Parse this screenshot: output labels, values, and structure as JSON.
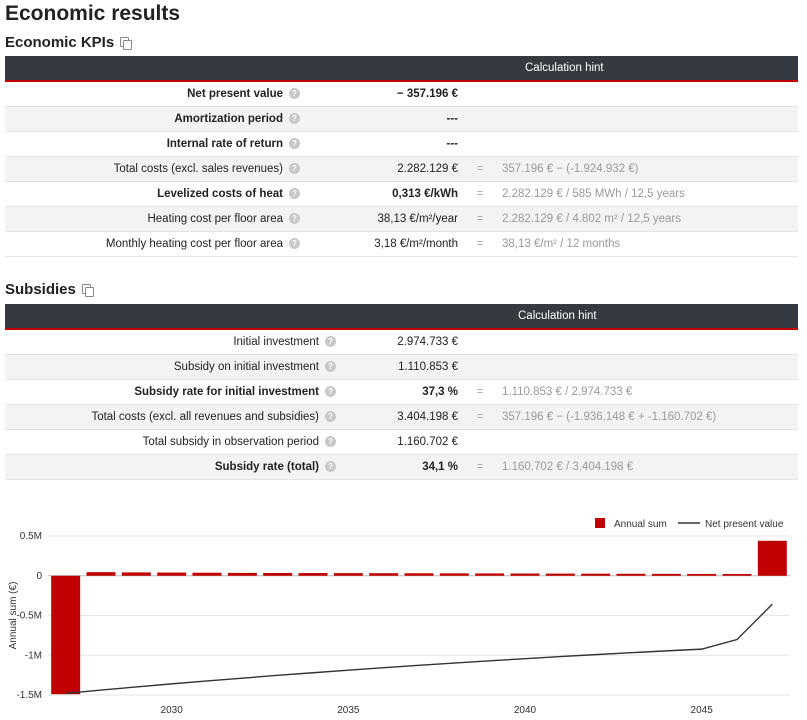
{
  "page": {
    "title": "Economic results"
  },
  "kpis": {
    "title": "Economic KPIs",
    "header_hint": "Calculation hint",
    "rows": [
      {
        "label": "Net present value",
        "value": "− 357.196 €",
        "hint": "",
        "bold": true
      },
      {
        "label": "Amortization period",
        "value": "---",
        "hint": "",
        "bold": true
      },
      {
        "label": "Internal rate of return",
        "value": "---",
        "hint": "",
        "bold": true
      },
      {
        "label": "Total costs (excl. sales revenues)",
        "value": "2.282.129 €",
        "hint": "357.196 € − (-1.924.932 €)",
        "bold": false
      },
      {
        "label": "Levelized costs of heat",
        "value": "0,313 €/kWh",
        "hint": "2.282.129 € / 585 MWh / 12,5 years",
        "bold": true
      },
      {
        "label": "Heating cost per floor area",
        "value": "38,13 €/m²/year",
        "hint": "2.282.129 € / 4.802 m² / 12,5 years",
        "bold": false
      },
      {
        "label": "Monthly heating cost per floor area",
        "value": "3,18 €/m²/month",
        "hint": "38,13 €/m² / 12 months",
        "bold": false
      }
    ]
  },
  "subsidies": {
    "title": "Subsidies",
    "header_hint": "Calculation hint",
    "rows": [
      {
        "label": "Initial investment",
        "value": "2.974.733 €",
        "hint": "",
        "bold": false
      },
      {
        "label": "Subsidy on initial investment",
        "value": "1.110.853 €",
        "hint": "",
        "bold": false
      },
      {
        "label": "Subsidy rate for initial investment",
        "value": "37,3 %",
        "hint": "1.110.853 € / 2.974.733 €",
        "bold": true
      },
      {
        "label": "Total costs (excl. all revenues and subsidies)",
        "value": "3.404.198 €",
        "hint": "357.196 € − (-1.936.148 € + -1.160.702 €)",
        "bold": false
      },
      {
        "label": "Total subsidy in observation period",
        "value": "1.160.702 €",
        "hint": "",
        "bold": false
      },
      {
        "label": "Subsidy rate (total)",
        "value": "34,1 %",
        "hint": "1.160.702 € / 3.404.198 €",
        "bold": true
      }
    ]
  },
  "icons": {
    "copy": "copy-icon",
    "help": "question-circle-icon"
  },
  "colors": {
    "bar": "#c00000",
    "line": "#333333",
    "header": "#343a40",
    "accent": "#c00000"
  },
  "chart_data": {
    "type": "bar",
    "ylabel": "Annual sum (€)",
    "xlabel": "",
    "ylim": [
      -1500000,
      500000
    ],
    "yticks": [
      500000,
      0,
      -500000,
      -1000000,
      -1500000
    ],
    "ytick_labels": [
      "0.5M",
      "0",
      "-0.5M",
      "-1M",
      "-1.5M"
    ],
    "xticks": [
      2030,
      2035,
      2040,
      2045
    ],
    "legend_position": "top-right",
    "series": [
      {
        "name": "Annual sum",
        "type": "bar",
        "x": [
          2027,
          2028,
          2029,
          2030,
          2031,
          2032,
          2033,
          2034,
          2035,
          2036,
          2037,
          2038,
          2039,
          2040,
          2041,
          2042,
          2043,
          2044,
          2045,
          2046,
          2047
        ],
        "values": [
          -1490000,
          45000,
          42000,
          40000,
          38000,
          36000,
          35000,
          34000,
          33000,
          32000,
          31000,
          30000,
          29000,
          28000,
          27000,
          26000,
          25000,
          24000,
          23000,
          22000,
          440000
        ]
      },
      {
        "name": "Net present value",
        "type": "line",
        "x": [
          2027,
          2028,
          2029,
          2030,
          2031,
          2032,
          2033,
          2034,
          2035,
          2036,
          2037,
          2038,
          2039,
          2040,
          2041,
          2042,
          2043,
          2044,
          2045,
          2046,
          2047
        ],
        "values": [
          -1480000,
          -1438000,
          -1398000,
          -1360000,
          -1323000,
          -1288000,
          -1253000,
          -1220000,
          -1188000,
          -1157000,
          -1127000,
          -1098000,
          -1070000,
          -1043000,
          -1017000,
          -992000,
          -968000,
          -945000,
          -923000,
          -802000,
          -357000
        ]
      }
    ]
  }
}
